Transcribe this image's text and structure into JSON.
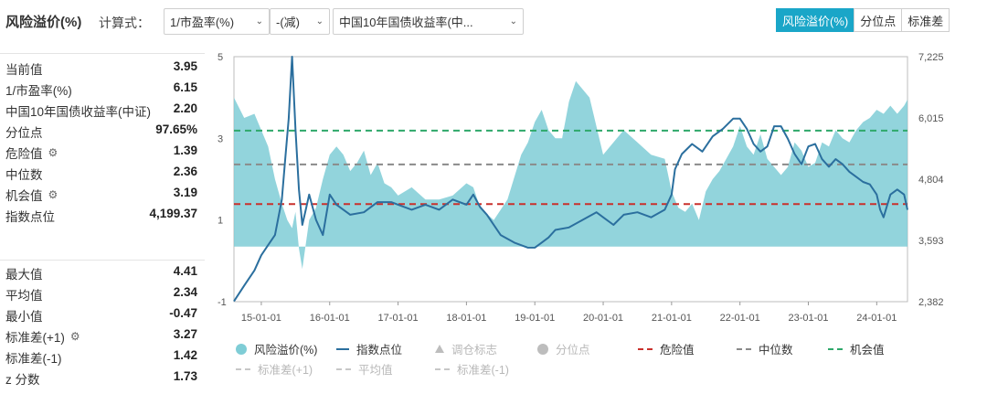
{
  "header": {
    "title": "风险溢价(%)",
    "formula_label": "计算式：",
    "selects": [
      {
        "value": "1/市盈率(%)"
      },
      {
        "value": "-(减)"
      },
      {
        "value": "中国10年国债收益率(中..."
      }
    ],
    "tabs": [
      {
        "label": "风险溢价(%)",
        "active": true
      },
      {
        "label": "分位点",
        "active": false
      },
      {
        "label": "标准差",
        "active": false
      }
    ]
  },
  "stats_top": [
    {
      "label": "当前值",
      "value": "3.95"
    },
    {
      "label": "1/市盈率(%)",
      "value": "6.15"
    },
    {
      "label": "中国10年国债收益率(中证)",
      "value": "2.20"
    },
    {
      "label": "分位点",
      "value": "97.65%"
    },
    {
      "label": "危险值",
      "value": "1.39",
      "gear": true
    },
    {
      "label": "中位数",
      "value": "2.36"
    },
    {
      "label": "机会值",
      "value": "3.19",
      "gear": true
    },
    {
      "label": "指数点位",
      "value": "4,199.37"
    }
  ],
  "stats_bottom": [
    {
      "label": "最大值",
      "value": "4.41"
    },
    {
      "label": "平均值",
      "value": "2.34"
    },
    {
      "label": "最小值",
      "value": "-0.47"
    },
    {
      "label": "标准差(+1)",
      "value": "3.27",
      "gear": true
    },
    {
      "label": "标准差(-1)",
      "value": "1.42"
    },
    {
      "label": "z 分数",
      "value": "1.73"
    }
  ],
  "legend": [
    {
      "label": "风险溢价(%)",
      "type": "dot",
      "color": "#7fcdd6",
      "active": true
    },
    {
      "label": "指数点位",
      "type": "line",
      "color": "#2b6f9e",
      "active": true
    },
    {
      "label": "调仓标志",
      "type": "triangle",
      "color": "#bdbdbd",
      "active": false
    },
    {
      "label": "分位点",
      "type": "dot",
      "color": "#bdbdbd",
      "active": false
    },
    {
      "label": "危险值",
      "type": "dash",
      "color": "#c9302c",
      "active": true
    },
    {
      "label": "中位数",
      "type": "dash",
      "color": "#8a8a8a",
      "active": true
    },
    {
      "label": "机会值",
      "type": "dash",
      "color": "#2ea86a",
      "active": true
    },
    {
      "label": "标准差(+1)",
      "type": "dash",
      "color": "#c7c7c7",
      "active": false
    },
    {
      "label": "平均值",
      "type": "dash",
      "color": "#c7c7c7",
      "active": false
    },
    {
      "label": "标准差(-1)",
      "type": "dash",
      "color": "#c7c7c7",
      "active": false
    }
  ],
  "chart_data": {
    "type": "area",
    "x_ticks": [
      "15-01-01",
      "16-01-01",
      "17-01-01",
      "18-01-01",
      "19-01-01",
      "20-01-01",
      "21-01-01",
      "22-01-01",
      "23-01-01",
      "24-01-01"
    ],
    "x_range": [
      2014.6,
      2024.45
    ],
    "y_left": {
      "range": [
        -1,
        5
      ],
      "ticks": [
        "-1",
        "1",
        "3",
        "5"
      ]
    },
    "y_right": {
      "range": [
        2382,
        7225
      ],
      "ticks": [
        "2,382",
        "3,593",
        "4,804",
        "6,015",
        "7,225"
      ]
    },
    "reference_lines": [
      {
        "name": "危险值",
        "value": 1.39,
        "color": "#c9302c"
      },
      {
        "name": "中位数",
        "value": 2.36,
        "color": "#8a8a8a"
      },
      {
        "name": "机会值",
        "value": 3.19,
        "color": "#2ea86a"
      }
    ],
    "series": [
      {
        "name": "风险溢价(%)",
        "axis": "left",
        "kind": "area",
        "color": "#7fcdd6",
        "x": [
          2014.6,
          2014.75,
          2014.9,
          2015.0,
          2015.1,
          2015.2,
          2015.3,
          2015.38,
          2015.45,
          2015.5,
          2015.55,
          2015.6,
          2015.7,
          2015.8,
          2015.9,
          2016.0,
          2016.1,
          2016.2,
          2016.3,
          2016.4,
          2016.5,
          2016.6,
          2016.7,
          2016.8,
          2016.9,
          2017.0,
          2017.2,
          2017.4,
          2017.6,
          2017.8,
          2018.0,
          2018.1,
          2018.2,
          2018.4,
          2018.6,
          2018.8,
          2018.9,
          2019.0,
          2019.1,
          2019.2,
          2019.3,
          2019.4,
          2019.5,
          2019.6,
          2019.8,
          2020.0,
          2020.2,
          2020.3,
          2020.5,
          2020.7,
          2020.9,
          2021.0,
          2021.1,
          2021.2,
          2021.3,
          2021.4,
          2021.5,
          2021.6,
          2021.7,
          2021.8,
          2021.9,
          2022.0,
          2022.1,
          2022.2,
          2022.3,
          2022.4,
          2022.5,
          2022.6,
          2022.7,
          2022.8,
          2022.9,
          2023.0,
          2023.1,
          2023.2,
          2023.3,
          2023.4,
          2023.5,
          2023.6,
          2023.7,
          2023.8,
          2023.9,
          2024.0,
          2024.1,
          2024.2,
          2024.3,
          2024.4,
          2024.45
        ],
        "y": [
          4.0,
          3.5,
          3.6,
          3.2,
          2.8,
          2.0,
          1.4,
          1.0,
          0.8,
          1.2,
          0.3,
          -0.2,
          1.0,
          1.3,
          2.0,
          2.6,
          2.8,
          2.6,
          2.2,
          2.4,
          2.7,
          2.1,
          2.4,
          1.9,
          1.8,
          1.6,
          1.8,
          1.5,
          1.5,
          1.6,
          1.9,
          1.8,
          1.3,
          1.0,
          1.5,
          2.6,
          2.9,
          3.4,
          3.7,
          3.2,
          3.0,
          3.0,
          3.9,
          4.4,
          4.0,
          2.6,
          3.0,
          3.2,
          2.9,
          2.6,
          2.5,
          1.7,
          1.3,
          1.2,
          1.4,
          1.0,
          1.7,
          2.0,
          2.2,
          2.5,
          2.8,
          3.3,
          2.8,
          2.6,
          3.1,
          2.5,
          2.3,
          2.1,
          2.3,
          2.9,
          2.7,
          2.3,
          2.4,
          2.9,
          2.8,
          3.2,
          3.0,
          2.9,
          3.2,
          3.4,
          3.5,
          3.7,
          3.6,
          3.8,
          3.6,
          3.8,
          3.95
        ]
      },
      {
        "name": "指数点位",
        "axis": "right",
        "kind": "line",
        "color": "#2b6f9e",
        "x": [
          2014.6,
          2014.75,
          2014.9,
          2015.0,
          2015.1,
          2015.2,
          2015.3,
          2015.35,
          2015.4,
          2015.45,
          2015.5,
          2015.55,
          2015.6,
          2015.65,
          2015.7,
          2015.8,
          2015.9,
          2016.0,
          2016.1,
          2016.2,
          2016.3,
          2016.5,
          2016.7,
          2016.9,
          2017.0,
          2017.2,
          2017.4,
          2017.6,
          2017.8,
          2018.0,
          2018.1,
          2018.2,
          2018.3,
          2018.5,
          2018.7,
          2018.9,
          2019.0,
          2019.1,
          2019.2,
          2019.3,
          2019.5,
          2019.7,
          2019.9,
          2020.0,
          2020.15,
          2020.3,
          2020.5,
          2020.7,
          2020.9,
          2021.0,
          2021.05,
          2021.15,
          2021.3,
          2021.45,
          2021.6,
          2021.75,
          2021.9,
          2022.0,
          2022.1,
          2022.2,
          2022.3,
          2022.4,
          2022.5,
          2022.6,
          2022.7,
          2022.8,
          2022.9,
          2023.0,
          2023.1,
          2023.2,
          2023.3,
          2023.4,
          2023.5,
          2023.6,
          2023.7,
          2023.8,
          2023.9,
          2024.0,
          2024.05,
          2024.1,
          2024.2,
          2024.3,
          2024.4,
          2024.45
        ],
        "y": [
          2390,
          2700,
          3000,
          3300,
          3500,
          3700,
          4400,
          5200,
          6000,
          7225,
          5800,
          4600,
          3900,
          4200,
          4500,
          4000,
          3700,
          4500,
          4300,
          4200,
          4100,
          4150,
          4350,
          4350,
          4300,
          4200,
          4300,
          4200,
          4400,
          4300,
          4500,
          4250,
          4100,
          3700,
          3550,
          3450,
          3450,
          3550,
          3650,
          3800,
          3850,
          4000,
          4150,
          4050,
          3900,
          4100,
          4150,
          4050,
          4200,
          4500,
          5000,
          5300,
          5500,
          5350,
          5650,
          5800,
          6000,
          6000,
          5800,
          5500,
          5350,
          5450,
          5850,
          5850,
          5600,
          5300,
          5100,
          5450,
          5500,
          5200,
          5050,
          5200,
          5100,
          4950,
          4850,
          4750,
          4700,
          4500,
          4200,
          4050,
          4500,
          4600,
          4500,
          4199
        ]
      }
    ]
  }
}
